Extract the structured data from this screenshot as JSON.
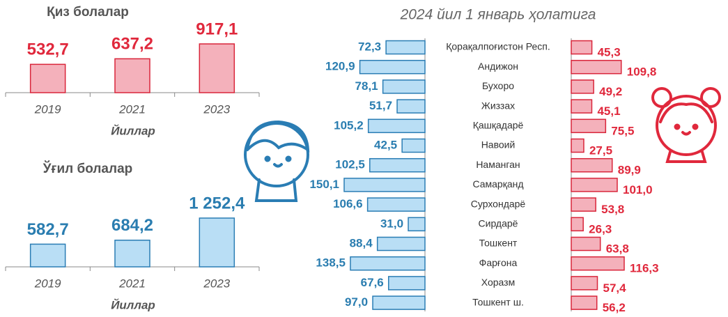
{
  "chart_data": [
    {
      "type": "bar",
      "title": "Қиз болалар",
      "categories": [
        "2019",
        "2021",
        "2023"
      ],
      "values": [
        532.7,
        637.2,
        917.1
      ],
      "value_labels": [
        "532,7",
        "637,2",
        "917,1"
      ],
      "color": "#f4b1bb",
      "stroke": "#d9253a",
      "label_color": "#e0283c",
      "x_label": "Йиллар"
    },
    {
      "type": "bar",
      "title": "Ўғил болалар",
      "categories": [
        "2019",
        "2021",
        "2023"
      ],
      "values": [
        582.7,
        684.2,
        1252.4
      ],
      "value_labels": [
        "582,7",
        "684,2",
        "1 252,4"
      ],
      "color": "#b9def5",
      "stroke": "#2a7db4",
      "label_color": "#2a7db0",
      "x_label": "Йиллар"
    },
    {
      "type": "butterfly",
      "title": "2024 йил 1 январь ҳолатига",
      "categories": [
        "Қорақалпоғистон Респ.",
        "Андижон",
        "Бухоро",
        "Жиззах",
        "Қашқадарё",
        "Навоий",
        "Наманган",
        "Самарқанд",
        "Сурхондарё",
        "Сирдарё",
        "Тошкент",
        "Фарғона",
        "Хоразм",
        "Тошкент ш."
      ],
      "series": [
        {
          "color": "#b9def5",
          "stroke": "#2a7db4",
          "label_color": "#2a7db0",
          "values": [
            72.3,
            120.9,
            78.1,
            51.7,
            105.2,
            42.5,
            102.5,
            150.1,
            106.6,
            31.0,
            88.4,
            138.5,
            67.6,
            97.0
          ],
          "value_labels": [
            "72,3",
            "120,9",
            "78,1",
            "51,7",
            "105,2",
            "42,5",
            "102,5",
            "150,1",
            "106,6",
            "31,0",
            "88,4",
            "138,5",
            "67,6",
            "97,0"
          ]
        },
        {
          "color": "#f4b1bb",
          "stroke": "#d9253a",
          "label_color": "#e0283c",
          "values": [
            45.3,
            109.8,
            49.2,
            45.1,
            75.5,
            27.5,
            89.9,
            101.0,
            53.8,
            26.3,
            63.8,
            116.3,
            57.4,
            56.2
          ],
          "value_labels": [
            "45,3",
            "109,8",
            "49,2",
            "45,1",
            "75,5",
            "27,5",
            "89,9",
            "101,0",
            "53,8",
            "26,3",
            "63,8",
            "116,3",
            "57,4",
            "56,2"
          ]
        }
      ]
    }
  ]
}
